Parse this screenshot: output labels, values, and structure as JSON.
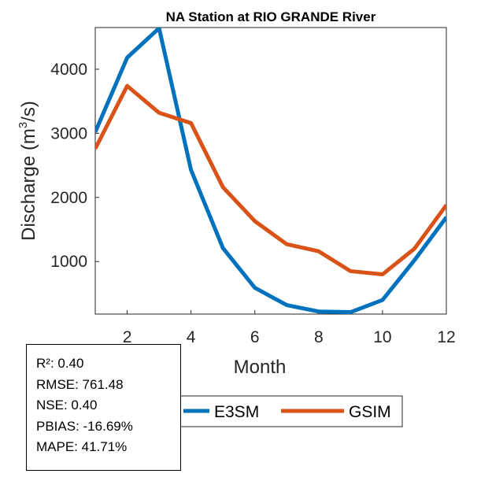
{
  "chart_data": {
    "type": "line",
    "title": "NA  Station at  RIO GRANDE  River",
    "xlabel": "Month",
    "ylabel": "Discharge (m",
    "ylabel_sup": "3",
    "ylabel_tail": "/s)",
    "xlim": [
      1,
      12
    ],
    "ylim": [
      180,
      4650
    ],
    "xticks": [
      2,
      4,
      6,
      8,
      10,
      12
    ],
    "yticks": [
      1000,
      2000,
      3000,
      4000
    ],
    "x": [
      1,
      2,
      3,
      4,
      5,
      6,
      7,
      8,
      9,
      10,
      11,
      12
    ],
    "series": [
      {
        "name": "E3SM",
        "color": "#0072BD",
        "values": [
          3020,
          4180,
          4640,
          2430,
          1210,
          590,
          320,
          220,
          210,
          400,
          1020,
          1690
        ]
      },
      {
        "name": "GSIM",
        "color": "#D95319",
        "values": [
          2760,
          3740,
          3320,
          3160,
          2160,
          1630,
          1270,
          1160,
          850,
          800,
          1200,
          1880
        ]
      }
    ],
    "legend_position": "bottom-right"
  },
  "stats": [
    "R²: 0.40",
    "RMSE: 761.48",
    "NSE: 0.40",
    "PBIAS: -16.69%",
    "MAPE: 41.71%"
  ]
}
